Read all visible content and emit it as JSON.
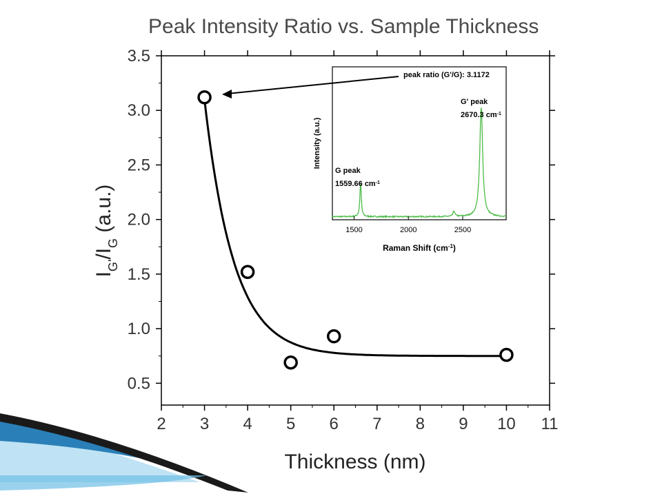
{
  "slide": {
    "title": "Peak Intensity Ratio vs. Sample Thickness"
  },
  "colors": {
    "axis": "#000000",
    "fit_line": "#000000",
    "inset_spectrum": "#4cbb47",
    "slide_accent_dark": "#1a1a1a",
    "slide_accent_blue": "#2a7fb8",
    "slide_accent_light": "#9fd3ef"
  },
  "chart_data": [
    {
      "type": "scatter",
      "xlabel": "Thickness (nm)",
      "ylabel_main": "I",
      "ylabel_sub1": "G'",
      "ylabel_mid": "/I",
      "ylabel_sub2": "G",
      "ylabel_unit": " (a.u.)",
      "xlim": [
        2,
        11
      ],
      "ylim": [
        0.3,
        3.5
      ],
      "xticks": [
        2,
        3,
        4,
        5,
        6,
        7,
        8,
        9,
        10,
        11
      ],
      "yticks": [
        "0.5",
        "1.0",
        "1.5",
        "2.0",
        "2.5",
        "3.0",
        "3.5"
      ],
      "grid": false,
      "points": [
        {
          "x": 3,
          "y": 3.12
        },
        {
          "x": 4,
          "y": 1.52
        },
        {
          "x": 5,
          "y": 0.69
        },
        {
          "x": 6,
          "y": 0.93
        },
        {
          "x": 10,
          "y": 0.76
        }
      ],
      "fit": {
        "type": "exponential-decay",
        "y0": 0.75,
        "A": 2.35,
        "x0": 3.0,
        "t": 0.68,
        "x_range": [
          3.0,
          10.0
        ]
      },
      "annotation": {
        "text": "peak ratio (G'/G): 3.1172",
        "points_to": {
          "x": 3,
          "y": 3.12
        }
      }
    },
    {
      "type": "line",
      "role": "inset",
      "xlabel_main": "Raman Shift (cm",
      "xlabel_sup": "-1",
      "xlabel_end": ")",
      "ylabel": "Intensity (a.u.)",
      "xlim": [
        1300,
        2900
      ],
      "xticks": [
        1500,
        2000,
        2500
      ],
      "yticks_labeled": false,
      "peaks": [
        {
          "name": "G peak",
          "position_text": "1559.66 cm",
          "position_sup": "-1",
          "x": 1559.66,
          "height": 0.22,
          "width": 8
        },
        {
          "name": "minor",
          "x": 2420,
          "height": 0.035,
          "width": 10
        },
        {
          "name": "G' peak",
          "position_text": "2670.3 cm",
          "position_sup": "-1",
          "x": 2670.3,
          "height": 0.72,
          "width": 16
        }
      ],
      "baseline": 0.02
    }
  ]
}
